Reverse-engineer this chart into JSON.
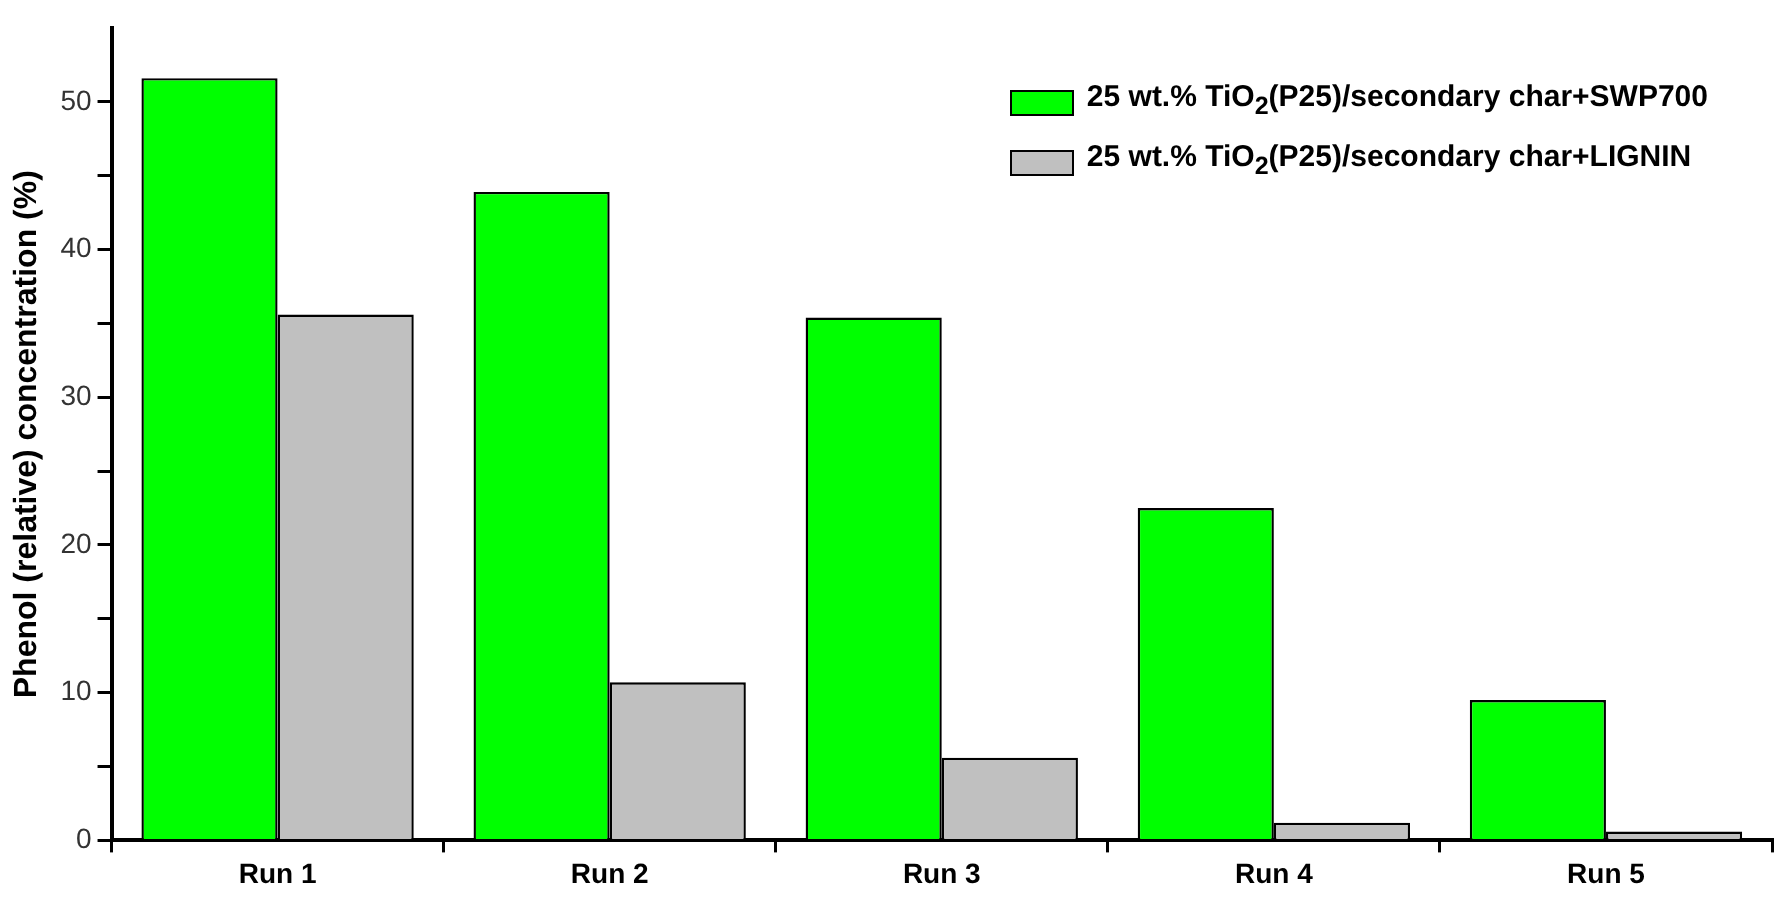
{
  "chart_data": {
    "type": "bar",
    "ylabel": "Phenol (relative) concentration (%)",
    "categories": [
      "Run 1",
      "Run 2",
      "Run 3",
      "Run 4",
      "Run 5"
    ],
    "series": [
      {
        "name": "25 wt.% TiO$_{2}$(P25)/secondary char+SWP700",
        "color": "#00ff00",
        "values": [
          51.6,
          43.9,
          35.4,
          22.5,
          9.5
        ]
      },
      {
        "name": "25 wt.% TiO$_{2}$(P25)/secondary char+LIGNIN",
        "color": "#c0c0c0",
        "values": [
          35.6,
          10.7,
          5.6,
          1.2,
          0.6
        ]
      }
    ],
    "ylim": [
      0,
      55
    ],
    "yticks": [
      0,
      {
        "value": 5,
        "label": null
      },
      10,
      {
        "value": 15,
        "label": null
      },
      20,
      {
        "value": 25,
        "label": null
      },
      30,
      {
        "value": 35,
        "label": null
      },
      40,
      {
        "value": 45,
        "label": null
      },
      50
    ],
    "grid": false,
    "legend": "top right"
  }
}
